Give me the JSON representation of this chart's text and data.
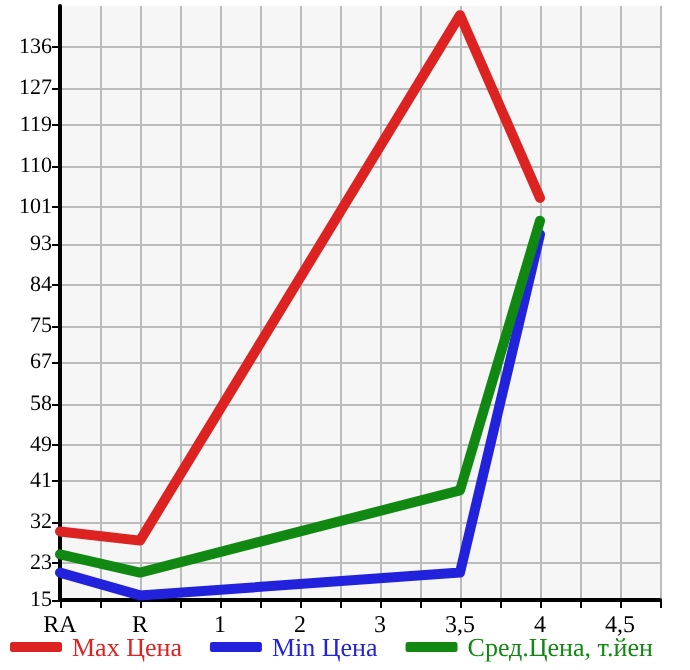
{
  "chart_data": {
    "type": "line",
    "categories": [
      "RA",
      "R",
      "1",
      "2",
      "3",
      "3,5",
      "4",
      "4,5"
    ],
    "series": [
      {
        "name": "Max Цена",
        "color": "#dd2222",
        "values": [
          30,
          28,
          null,
          null,
          null,
          143,
          103,
          null
        ]
      },
      {
        "name": "Min Цена",
        "color": "#2222dd",
        "values": [
          21,
          16,
          null,
          null,
          null,
          21,
          95,
          null
        ]
      },
      {
        "name": "Сред.Цена, т.йен",
        "color": "#118811",
        "values": [
          25,
          21,
          null,
          null,
          null,
          39,
          98,
          null
        ]
      }
    ],
    "ylim": [
      15,
      145
    ],
    "yticks": [
      15,
      23,
      32,
      41,
      49,
      58,
      67,
      75,
      84,
      93,
      101,
      110,
      119,
      127,
      136
    ],
    "grid": true,
    "legend": "bottom",
    "marker": "none",
    "line_style": "solid"
  }
}
